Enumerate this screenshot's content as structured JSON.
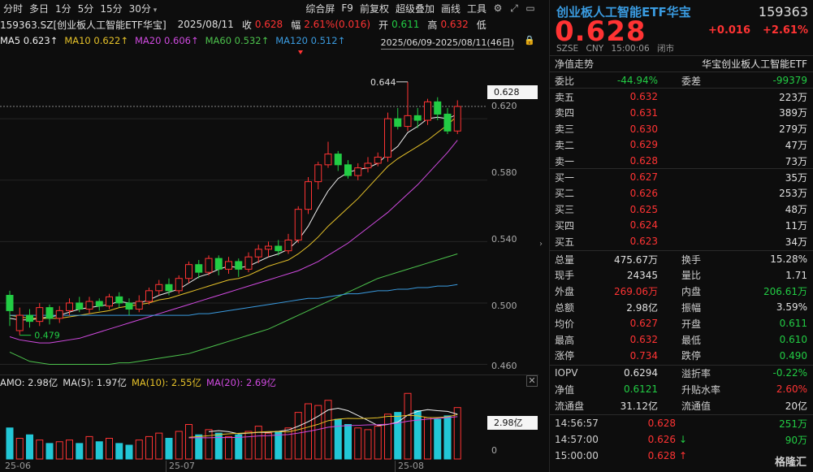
{
  "toolbar": {
    "items": [
      "分时",
      "多日",
      "1分",
      "5分",
      "15分",
      "30分",
      "综合屏",
      "F9",
      "前复权",
      "超级叠加",
      "画线",
      "工具"
    ]
  },
  "info": {
    "name": "159363.SZ[创业板人工智能ETF华宝]",
    "date": "2025/08/11",
    "close_label": "收",
    "close": "0.628",
    "range_label": "幅",
    "range": "2.61%(0.016)",
    "open_label": "开",
    "open": "0.611",
    "high_label": "高",
    "high": "0.632",
    "low_label": "低"
  },
  "ma": {
    "ma5": "MA5 0.623↑",
    "ma10": "MA10 0.622↑",
    "ma20": "MA20 0.606↑",
    "ma60": "MA60 0.532↑",
    "ma120": "MA120 0.512↑",
    "date_range": "2025/06/09-2025/08/11(46日)"
  },
  "chart_labels": {
    "high_marker": "0.644",
    "low_marker": "0.479",
    "price_tag": "0.628",
    "vol_tag": "2.98亿",
    "y_ticks": [
      "0.620",
      "0.580",
      "0.540",
      "0.500",
      "0.460"
    ],
    "vol_zero": "0",
    "x_ticks": [
      "25-06",
      "25-07",
      "25-08"
    ]
  },
  "amo": {
    "label": "AMO: 2.98亿",
    "ma5": "MA(5): 1.97亿",
    "ma10": "MA(10): 2.55亿",
    "ma20": "MA(20): 2.69亿"
  },
  "colors": {
    "up": "#ff3333",
    "down": "#22cc44",
    "ma5": "#f0f0f0",
    "ma10": "#e6c229",
    "ma20": "#d04ae0",
    "ma60": "#4cc24c",
    "ma120": "#3a9be0"
  },
  "chart_data": {
    "type": "candlestick",
    "dates_first": "2025/06/09",
    "dates_last": "2025/08/11",
    "count": 46,
    "ylim": [
      0.455,
      0.655
    ],
    "candles": [
      [
        0.505,
        0.495,
        0.508,
        0.485
      ],
      [
        0.482,
        0.492,
        0.497,
        0.479
      ],
      [
        0.492,
        0.488,
        0.496,
        0.484
      ],
      [
        0.488,
        0.497,
        0.5,
        0.485
      ],
      [
        0.497,
        0.49,
        0.499,
        0.486
      ],
      [
        0.49,
        0.495,
        0.498,
        0.487
      ],
      [
        0.495,
        0.5,
        0.503,
        0.492
      ],
      [
        0.5,
        0.496,
        0.504,
        0.494
      ],
      [
        0.496,
        0.501,
        0.504,
        0.493
      ],
      [
        0.501,
        0.498,
        0.503,
        0.495
      ],
      [
        0.498,
        0.504,
        0.506,
        0.496
      ],
      [
        0.504,
        0.5,
        0.507,
        0.497
      ],
      [
        0.5,
        0.496,
        0.503,
        0.492
      ],
      [
        0.496,
        0.501,
        0.505,
        0.494
      ],
      [
        0.501,
        0.508,
        0.51,
        0.499
      ],
      [
        0.508,
        0.512,
        0.515,
        0.505
      ],
      [
        0.512,
        0.508,
        0.516,
        0.505
      ],
      [
        0.508,
        0.516,
        0.518,
        0.506
      ],
      [
        0.516,
        0.525,
        0.527,
        0.513
      ],
      [
        0.525,
        0.52,
        0.528,
        0.516
      ],
      [
        0.52,
        0.529,
        0.531,
        0.518
      ],
      [
        0.529,
        0.522,
        0.531,
        0.518
      ],
      [
        0.522,
        0.527,
        0.53,
        0.519
      ],
      [
        0.527,
        0.522,
        0.529,
        0.517
      ],
      [
        0.522,
        0.53,
        0.533,
        0.52
      ],
      [
        0.53,
        0.535,
        0.538,
        0.526
      ],
      [
        0.535,
        0.537,
        0.54,
        0.53
      ],
      [
        0.537,
        0.534,
        0.541,
        0.531
      ],
      [
        0.534,
        0.541,
        0.545,
        0.532
      ],
      [
        0.541,
        0.561,
        0.563,
        0.539
      ],
      [
        0.561,
        0.579,
        0.582,
        0.558
      ],
      [
        0.579,
        0.59,
        0.592,
        0.574
      ],
      [
        0.59,
        0.597,
        0.605,
        0.588
      ],
      [
        0.597,
        0.59,
        0.599,
        0.586
      ],
      [
        0.59,
        0.583,
        0.593,
        0.581
      ],
      [
        0.583,
        0.588,
        0.591,
        0.58
      ],
      [
        0.588,
        0.591,
        0.595,
        0.585
      ],
      [
        0.591,
        0.595,
        0.598,
        0.589
      ],
      [
        0.595,
        0.62,
        0.624,
        0.592
      ],
      [
        0.62,
        0.615,
        0.627,
        0.613
      ],
      [
        0.615,
        0.622,
        0.644,
        0.612
      ],
      [
        0.622,
        0.619,
        0.627,
        0.614
      ],
      [
        0.619,
        0.631,
        0.633,
        0.616
      ],
      [
        0.631,
        0.623,
        0.634,
        0.619
      ],
      [
        0.623,
        0.612,
        0.627,
        0.61
      ],
      [
        0.612,
        0.628,
        0.632,
        0.61
      ]
    ],
    "ma_series": {
      "ma5": [
        0.49,
        0.489,
        0.489,
        0.49,
        0.491,
        0.492,
        0.494,
        0.496,
        0.497,
        0.498,
        0.499,
        0.501,
        0.5,
        0.5,
        0.502,
        0.505,
        0.507,
        0.509,
        0.513,
        0.517,
        0.519,
        0.522,
        0.524,
        0.523,
        0.524,
        0.527,
        0.53,
        0.532,
        0.535,
        0.541,
        0.55,
        0.562,
        0.573,
        0.581,
        0.585,
        0.587,
        0.588,
        0.591,
        0.597,
        0.602,
        0.611,
        0.615,
        0.62,
        0.621,
        0.62,
        0.623
      ],
      "ma10": [
        0.492,
        0.491,
        0.49,
        0.49,
        0.49,
        0.49,
        0.491,
        0.492,
        0.493,
        0.494,
        0.495,
        0.497,
        0.498,
        0.499,
        0.5,
        0.502,
        0.503,
        0.505,
        0.507,
        0.509,
        0.511,
        0.513,
        0.515,
        0.516,
        0.518,
        0.521,
        0.524,
        0.526,
        0.528,
        0.532,
        0.537,
        0.543,
        0.55,
        0.556,
        0.562,
        0.568,
        0.575,
        0.582,
        0.589,
        0.594,
        0.598,
        0.602,
        0.606,
        0.611,
        0.616,
        0.622
      ],
      "ma20": [
        0.478,
        0.476,
        0.475,
        0.474,
        0.474,
        0.475,
        0.476,
        0.477,
        0.479,
        0.481,
        0.483,
        0.485,
        0.487,
        0.489,
        0.491,
        0.493,
        0.495,
        0.497,
        0.499,
        0.501,
        0.503,
        0.505,
        0.507,
        0.509,
        0.511,
        0.513,
        0.515,
        0.517,
        0.519,
        0.521,
        0.524,
        0.527,
        0.531,
        0.535,
        0.539,
        0.544,
        0.549,
        0.554,
        0.559,
        0.565,
        0.571,
        0.577,
        0.584,
        0.591,
        0.598,
        0.606
      ],
      "ma60": [
        0.468,
        0.465,
        0.462,
        0.461,
        0.46,
        0.46,
        0.46,
        0.46,
        0.46,
        0.46,
        0.46,
        0.461,
        0.461,
        0.462,
        0.463,
        0.464,
        0.465,
        0.466,
        0.467,
        0.469,
        0.471,
        0.473,
        0.475,
        0.477,
        0.479,
        0.481,
        0.483,
        0.486,
        0.489,
        0.492,
        0.495,
        0.498,
        0.501,
        0.504,
        0.507,
        0.51,
        0.513,
        0.516,
        0.518,
        0.52,
        0.522,
        0.524,
        0.526,
        0.528,
        0.53,
        0.532
      ],
      "ma120": [
        0.492,
        0.492,
        0.492,
        0.492,
        0.492,
        0.492,
        0.492,
        0.492,
        0.492,
        0.492,
        0.492,
        0.492,
        0.492,
        0.492,
        0.492,
        0.492,
        0.492,
        0.492,
        0.492,
        0.493,
        0.493,
        0.494,
        0.495,
        0.496,
        0.497,
        0.498,
        0.499,
        0.5,
        0.501,
        0.502,
        0.503,
        0.503,
        0.504,
        0.505,
        0.506,
        0.506,
        0.507,
        0.508,
        0.508,
        0.509,
        0.509,
        0.51,
        0.51,
        0.511,
        0.511,
        0.512
      ]
    },
    "volume": [
      1.8,
      1.2,
      1.4,
      1.1,
      0.9,
      1.0,
      1.1,
      0.9,
      1.3,
      1.0,
      1.2,
      0.9,
      0.8,
      1.1,
      1.3,
      1.5,
      1.2,
      1.6,
      2.0,
      1.4,
      1.7,
      1.5,
      1.3,
      1.4,
      1.6,
      1.9,
      1.5,
      1.6,
      1.8,
      2.7,
      3.2,
      3.1,
      3.4,
      2.3,
      2.0,
      1.8,
      1.7,
      1.9,
      2.6,
      2.7,
      3.8,
      2.8,
      2.4,
      2.3,
      2.5,
      2.98
    ],
    "volume_ylim": [
      0,
      4.0
    ]
  },
  "quote": {
    "name": "创业板人工智能ETF华宝",
    "code": "159363",
    "price": "0.628",
    "change": "+0.016",
    "pct": "+2.61%",
    "meta": [
      "SZSE",
      "CNY",
      "15:00:06",
      "闭市"
    ],
    "nav_trend": "净值走势",
    "fund_name": "华宝创业板人工智能ETF",
    "weibi_label": "委比",
    "weibi": "-44.94%",
    "weicha_label": "委差",
    "weicha": "-99379",
    "asks": [
      {
        "label": "卖五",
        "price": "0.632",
        "vol": "223万"
      },
      {
        "label": "卖四",
        "price": "0.631",
        "vol": "389万"
      },
      {
        "label": "卖三",
        "price": "0.630",
        "vol": "279万"
      },
      {
        "label": "卖二",
        "price": "0.629",
        "vol": "47万"
      },
      {
        "label": "卖一",
        "price": "0.628",
        "vol": "73万"
      }
    ],
    "bids": [
      {
        "label": "买一",
        "price": "0.627",
        "vol": "35万"
      },
      {
        "label": "买二",
        "price": "0.626",
        "vol": "253万"
      },
      {
        "label": "买三",
        "price": "0.625",
        "vol": "48万"
      },
      {
        "label": "买四",
        "price": "0.624",
        "vol": "11万"
      },
      {
        "label": "买五",
        "price": "0.623",
        "vol": "34万"
      }
    ],
    "stats": [
      {
        "l1": "总量",
        "v1": "475.67万",
        "c1": "white",
        "l2": "换手",
        "v2": "15.28%",
        "c2": "white"
      },
      {
        "l1": "现手",
        "v1": "24345",
        "c1": "white",
        "l2": "量比",
        "v2": "1.71",
        "c2": "white"
      },
      {
        "l1": "外盘",
        "v1": "269.06万",
        "c1": "red",
        "l2": "内盘",
        "v2": "206.61万",
        "c2": "green"
      },
      {
        "l1": "总额",
        "v1": "2.98亿",
        "c1": "white",
        "l2": "振幅",
        "v2": "3.59%",
        "c2": "white"
      },
      {
        "l1": "均价",
        "v1": "0.627",
        "c1": "red",
        "l2": "开盘",
        "v2": "0.611",
        "c2": "green"
      },
      {
        "l1": "最高",
        "v1": "0.632",
        "c1": "red",
        "l2": "最低",
        "v2": "0.610",
        "c2": "green"
      },
      {
        "l1": "涨停",
        "v1": "0.734",
        "c1": "red",
        "l2": "跌停",
        "v2": "0.490",
        "c2": "green"
      }
    ],
    "stats2": [
      {
        "l1": "IOPV",
        "v1": "0.6294",
        "c1": "white",
        "l2": "溢折率",
        "v2": "-0.22%",
        "c2": "green"
      },
      {
        "l1": "净值",
        "v1": "0.6121",
        "c1": "green",
        "l2": "升贴水率",
        "v2": "2.60%",
        "c2": "red"
      },
      {
        "l1": "流通盘",
        "v1": "31.12亿",
        "c1": "white",
        "l2": "流通值",
        "v2": "20亿",
        "c2": "white"
      }
    ],
    "ticks": [
      {
        "time": "14:56:57",
        "price": "0.628",
        "arrow": "",
        "vol": "251万",
        "vc": "green"
      },
      {
        "time": "14:57:00",
        "price": "0.626",
        "arrow": "↓",
        "vol": "90万",
        "vc": "green"
      },
      {
        "time": "15:00:00",
        "price": "0.628",
        "arrow": "↑",
        "vol": "",
        "vc": "red"
      }
    ],
    "watermark": "格隆汇"
  }
}
